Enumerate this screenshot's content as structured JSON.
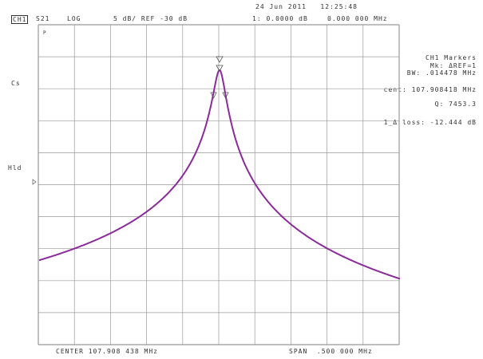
{
  "header": {
    "datetime": "24 Jun 2011   12:25:48",
    "channel": "CH1",
    "param": "S21",
    "format": "LOG",
    "scale": "5 dB/ REF -30 dB",
    "marker_readout": "1: 0.0000 dB",
    "marker_freq": "0.000 000 MHz"
  },
  "left_labels": {
    "p": "P",
    "cs": "Cs",
    "hld": "Hld"
  },
  "markers_panel": {
    "title": "CH1 Markers",
    "mode": "Mk: ΔREF=1",
    "bw": "BW: .014478 MHz",
    "cent": "cent: 107.908418 MHz",
    "q": "Q: 7453.3",
    "loss": "1_Δ loss: -12.444 dB"
  },
  "footer": {
    "center": "CENTER 107.908 438 MHz",
    "span": "SPAN  .500 000 MHz"
  },
  "chart_data": {
    "type": "line",
    "trace_color": "#8b2a9b",
    "xlabel": "",
    "ylabel": "",
    "x_center_mhz": 107.908438,
    "x_span_mhz": 0.5,
    "y_scale_db_per_div": 5,
    "y_ref_db": -30,
    "grid": true,
    "divisions": {
      "x": 10,
      "y": 10
    },
    "series": [
      {
        "x_offset_mhz": [
          -0.25,
          -0.2,
          -0.15,
          -0.1,
          -0.05,
          -0.025,
          -0.01,
          -0.005,
          0,
          0.005,
          0.01,
          0.025,
          0.05,
          0.1,
          0.15,
          0.2,
          0.25
        ],
        "y_rel_db": [
          -29.7,
          -27.8,
          -25.3,
          -21.8,
          -16.0,
          -10.6,
          -4.6,
          -1.9,
          0,
          -1.9,
          -4.6,
          -10.6,
          -16.0,
          -21.9,
          -25.6,
          -28.2,
          -32.6
        ]
      }
    ]
  }
}
